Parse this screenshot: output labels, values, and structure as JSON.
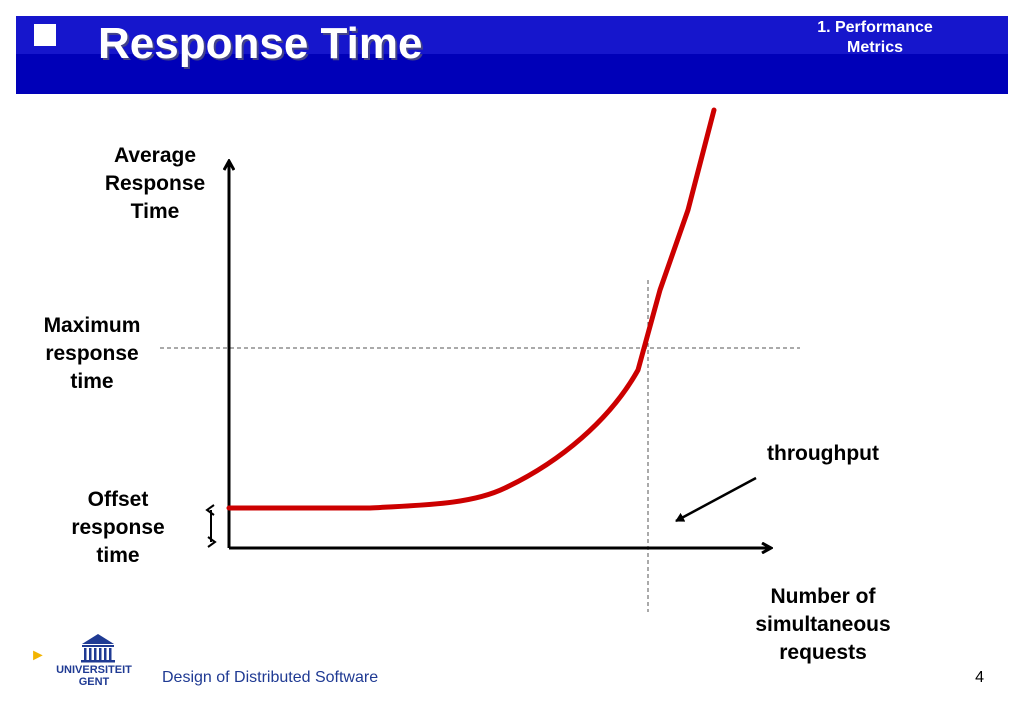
{
  "header": {
    "title": "Response Time",
    "section_line1": "1. Performance",
    "section_line2": "Metrics"
  },
  "diagram": {
    "y_axis_label": [
      "Average",
      "Response",
      "Time"
    ],
    "max_label": [
      "Maximum",
      "response",
      "time"
    ],
    "offset_label": [
      "Offset",
      "response",
      "time"
    ],
    "throughput_label": "throughput",
    "x_axis_label": [
      "Number of",
      "simultaneous",
      "requests"
    ],
    "curve_color": "#cc0000"
  },
  "footer": {
    "logo_line1": "UNIVERSITEIT",
    "logo_line2": "GENT",
    "title": "Design of Distributed Software",
    "page": "4"
  }
}
